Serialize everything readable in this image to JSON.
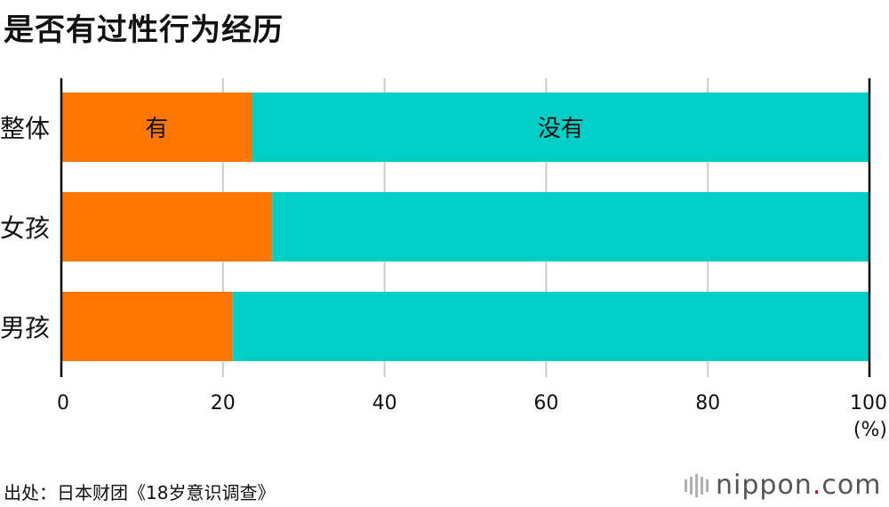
{
  "title": "是否有过性行为经历",
  "source": "出处：日本财团《18岁意识调查》",
  "logo": {
    "name": "nippon",
    "dot": ".",
    "domain": "com"
  },
  "colors": {
    "yes": "#FF7700",
    "no": "#00CFC7",
    "grid": "#cccccc",
    "axis": "#000000"
  },
  "chart_data": {
    "type": "bar",
    "orientation": "horizontal",
    "stacked": true,
    "categories": [
      "整体",
      "女孩",
      "男孩"
    ],
    "series": [
      {
        "name": "有",
        "values": [
          23.6,
          26.1,
          21.2
        ]
      },
      {
        "name": "没有",
        "values": [
          76.4,
          73.9,
          78.8
        ]
      }
    ],
    "series_labels_on_first_bar": [
      "有",
      "没有"
    ],
    "xlim": [
      0,
      100
    ],
    "xticks": [
      "0",
      "20",
      "40",
      "60",
      "80",
      "100"
    ],
    "xunit": "(%)",
    "grid": true
  }
}
